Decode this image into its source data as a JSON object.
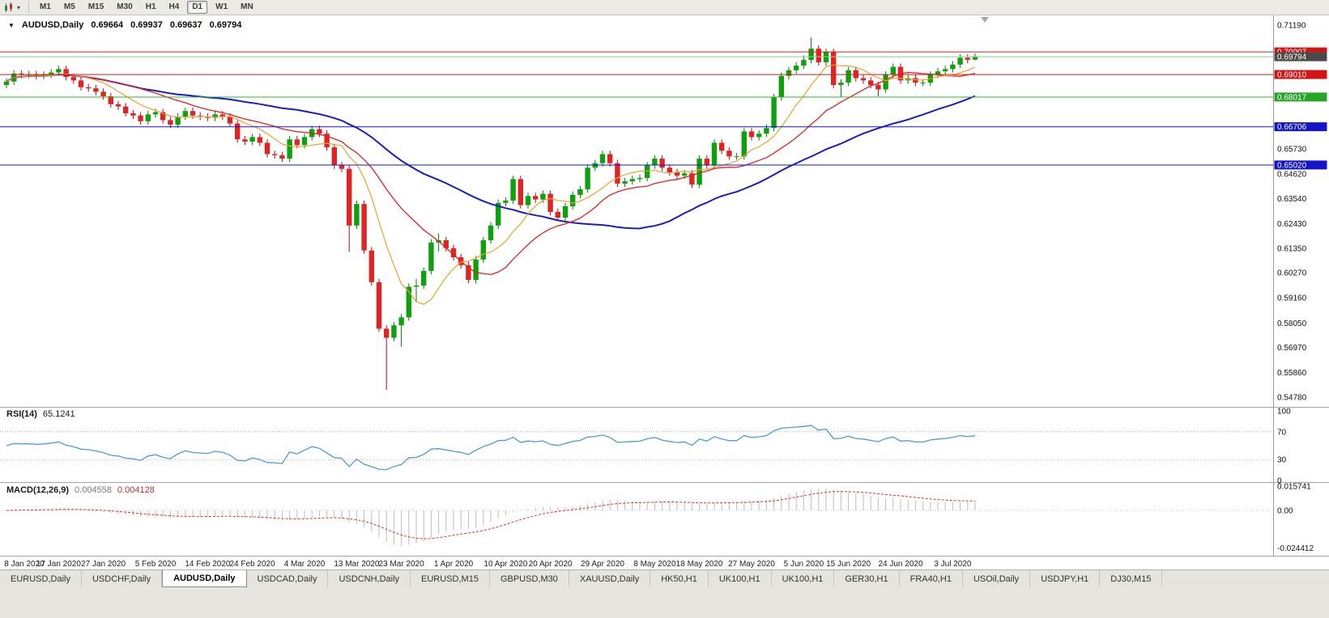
{
  "toolbar": {
    "timeframes": [
      "M1",
      "M5",
      "M15",
      "M30",
      "H1",
      "H4",
      "D1",
      "W1",
      "MN"
    ],
    "active_timeframe": "D1"
  },
  "chart_header": {
    "symbol_timeframe": "AUDUSD,Daily",
    "open": "0.69664",
    "high": "0.69937",
    "low": "0.69637",
    "close": "0.69794"
  },
  "rsi_header": {
    "name": "RSI(14)",
    "value": "65.1241"
  },
  "macd_header": {
    "name": "MACD(12,26,9)",
    "main_value": "0.004558",
    "signal_value": "0.004128"
  },
  "price_axis": {
    "labels": [
      "0.71190",
      "0.65730",
      "0.64620",
      "0.63540",
      "0.62430",
      "0.61350",
      "0.60270",
      "0.59160",
      "0.58050",
      "0.56970",
      "0.55860",
      "0.54780"
    ]
  },
  "rsi_axis": [
    "100",
    "70",
    "30",
    "0"
  ],
  "macd_axis": [
    "0.015741",
    "0.00",
    "-0.024412"
  ],
  "tabs": {
    "active_index": 2,
    "items": [
      "EURUSD,Daily",
      "USDCHF,Daily",
      "AUDUSD,Daily",
      "USDCAD,Daily",
      "USDCNH,Daily",
      "EURUSD,M15",
      "GBPUSD,M30",
      "XAUUSD,Daily",
      "HK50,H1",
      "UK100,H1",
      "UK100,H1",
      "GER30,H1",
      "FRA40,H1",
      "USOil,Daily",
      "USDJPY,H1",
      "DJ30,M15"
    ],
    "note": ""
  },
  "chart_data": {
    "type": "candlestick",
    "symbol": "AUDUSD",
    "timeframe": "Daily",
    "title": "AUDUSD,Daily  0.69664 0.69937 0.69637 0.69794",
    "ylim": [
      0.5478,
      0.7119
    ],
    "grid": false,
    "style": {
      "up": "#0da10d",
      "down": "#e02424",
      "up_wick": "#077d07",
      "down_wick": "#a31212",
      "rsi": "#4f9bd5",
      "macd_hist": "#bdbdbd",
      "macd_signal": "#e03030",
      "current_price_line": "#85d285"
    },
    "moving_averages": [
      {
        "label": "MA fast",
        "color": "#eea22e"
      },
      {
        "label": "MA medium",
        "color": "#e32020"
      },
      {
        "label": "MA slow",
        "color": "#1c1cc0"
      }
    ],
    "hlines": [
      {
        "price": 0.70007,
        "label": "0.70007",
        "line_color": "#e01818",
        "tag_bg": "#d21414",
        "tag_fg": "#ffffff",
        "current": false
      },
      {
        "price": 0.69794,
        "label": "0.69794",
        "line_color": "#85d285",
        "tag_bg": "#4a4a4a",
        "tag_fg": "#ffffff",
        "current": true
      },
      {
        "price": 0.6901,
        "label": "0.69010",
        "line_color": "#e01818",
        "tag_bg": "#d21414",
        "tag_fg": "#ffffff",
        "current": false
      },
      {
        "price": 0.68017,
        "label": "0.68017",
        "line_color": "#2db82d",
        "tag_bg": "#28a428",
        "tag_fg": "#ffffff",
        "current": false
      },
      {
        "price": 0.66706,
        "label": "0.66706",
        "line_color": "#1414d2",
        "tag_bg": "#1414c8",
        "tag_fg": "#ffffff",
        "current": false
      },
      {
        "price": 0.6502,
        "label": "0.65020",
        "line_color": "#1414d2",
        "tag_bg": "#1414c8",
        "tag_fg": "#ffffff",
        "current": false
      }
    ],
    "x_labels": [
      [
        "8 Jan 2020",
        0
      ],
      [
        "17 Jan 2020",
        7
      ],
      [
        "27 Jan 2020",
        13
      ],
      [
        "5 Feb 2020",
        20
      ],
      [
        "14 Feb 2020",
        27
      ],
      [
        "24 Feb 2020",
        33
      ],
      [
        "4 Mar 2020",
        40
      ],
      [
        "13 Mar 2020",
        47
      ],
      [
        "23 Mar 2020",
        53
      ],
      [
        "1 Apr 2020",
        60
      ],
      [
        "10 Apr 2020",
        67
      ],
      [
        "20 Apr 2020",
        73
      ],
      [
        "29 Apr 2020",
        80
      ],
      [
        "8 May 2020",
        87
      ],
      [
        "18 May 2020",
        93
      ],
      [
        "27 May 2020",
        100
      ],
      [
        "5 Jun 2020",
        107
      ],
      [
        "15 Jun 2020",
        113
      ],
      [
        "24 Jun 2020",
        120
      ],
      [
        "3 Jul 2020",
        127
      ]
    ],
    "indicators": [
      {
        "name": "RSI",
        "period": 14,
        "current": 65.1241,
        "levels": [
          70,
          30
        ],
        "range": [
          0,
          100
        ]
      },
      {
        "name": "MACD",
        "params": [
          12,
          26,
          9
        ],
        "main": 0.004558,
        "signal": 0.004128,
        "range": [
          -0.024412,
          0.015741
        ]
      }
    ],
    "candles": [
      [
        0.6855,
        0.6885,
        0.684,
        0.687
      ],
      [
        0.687,
        0.692,
        0.6855,
        0.6905
      ],
      [
        0.6905,
        0.692,
        0.6885,
        0.69
      ],
      [
        0.69,
        0.6917,
        0.6885,
        0.6902
      ],
      [
        0.6902,
        0.6917,
        0.688,
        0.6895
      ],
      [
        0.6895,
        0.6915,
        0.688,
        0.69
      ],
      [
        0.69,
        0.6925,
        0.6885,
        0.691
      ],
      [
        0.691,
        0.694,
        0.6895,
        0.6925
      ],
      [
        0.6925,
        0.694,
        0.6875,
        0.689
      ],
      [
        0.689,
        0.6905,
        0.686,
        0.6875
      ],
      [
        0.6875,
        0.689,
        0.683,
        0.6845
      ],
      [
        0.6845,
        0.686,
        0.6825,
        0.684
      ],
      [
        0.684,
        0.6855,
        0.681,
        0.6825
      ],
      [
        0.6825,
        0.684,
        0.679,
        0.6805
      ],
      [
        0.6805,
        0.682,
        0.6755,
        0.677
      ],
      [
        0.677,
        0.6785,
        0.6745,
        0.676
      ],
      [
        0.676,
        0.6775,
        0.6715,
        0.673
      ],
      [
        0.673,
        0.6745,
        0.6705,
        0.672
      ],
      [
        0.672,
        0.6735,
        0.668,
        0.6695
      ],
      [
        0.6695,
        0.674,
        0.668,
        0.6725
      ],
      [
        0.6725,
        0.675,
        0.671,
        0.6735
      ],
      [
        0.6735,
        0.675,
        0.6685,
        0.67
      ],
      [
        0.67,
        0.6715,
        0.6665,
        0.668
      ],
      [
        0.668,
        0.673,
        0.6665,
        0.6715
      ],
      [
        0.6715,
        0.6755,
        0.67,
        0.674
      ],
      [
        0.674,
        0.6755,
        0.6705,
        0.672
      ],
      [
        0.672,
        0.6735,
        0.67,
        0.6715
      ],
      [
        0.6715,
        0.673,
        0.6695,
        0.671
      ],
      [
        0.671,
        0.674,
        0.6695,
        0.6725
      ],
      [
        0.6725,
        0.674,
        0.67,
        0.6715
      ],
      [
        0.6715,
        0.673,
        0.667,
        0.6685
      ],
      [
        0.6685,
        0.67,
        0.66,
        0.6615
      ],
      [
        0.6615,
        0.663,
        0.659,
        0.6605
      ],
      [
        0.6605,
        0.664,
        0.659,
        0.6625
      ],
      [
        0.6625,
        0.664,
        0.6585,
        0.66
      ],
      [
        0.66,
        0.6615,
        0.6535,
        0.655
      ],
      [
        0.655,
        0.6565,
        0.653,
        0.6545
      ],
      [
        0.6545,
        0.656,
        0.6515,
        0.653
      ],
      [
        0.653,
        0.663,
        0.6515,
        0.6615
      ],
      [
        0.6615,
        0.663,
        0.6575,
        0.659
      ],
      [
        0.659,
        0.664,
        0.6575,
        0.6625
      ],
      [
        0.6625,
        0.6675,
        0.661,
        0.666
      ],
      [
        0.666,
        0.6675,
        0.6625,
        0.664
      ],
      [
        0.664,
        0.6655,
        0.6565,
        0.658
      ],
      [
        0.658,
        0.6595,
        0.6485,
        0.65
      ],
      [
        0.65,
        0.6515,
        0.647,
        0.6485
      ],
      [
        0.6485,
        0.65,
        0.612,
        0.6235
      ],
      [
        0.6235,
        0.6345,
        0.622,
        0.633
      ],
      [
        0.633,
        0.6345,
        0.611,
        0.6125
      ],
      [
        0.6125,
        0.614,
        0.597,
        0.5985
      ],
      [
        0.5985,
        0.6,
        0.5765,
        0.578
      ],
      [
        0.578,
        0.5795,
        0.551,
        0.574
      ],
      [
        0.574,
        0.581,
        0.5725,
        0.5795
      ],
      [
        0.5795,
        0.5845,
        0.57,
        0.583
      ],
      [
        0.583,
        0.598,
        0.5815,
        0.5965
      ],
      [
        0.5965,
        0.6,
        0.59,
        0.597
      ],
      [
        0.597,
        0.605,
        0.5955,
        0.6035
      ],
      [
        0.6035,
        0.6175,
        0.602,
        0.616
      ],
      [
        0.616,
        0.62,
        0.612,
        0.617
      ],
      [
        0.617,
        0.6185,
        0.612,
        0.6135
      ],
      [
        0.6135,
        0.615,
        0.608,
        0.6095
      ],
      [
        0.6095,
        0.611,
        0.6045,
        0.606
      ],
      [
        0.606,
        0.6075,
        0.598,
        0.5995
      ],
      [
        0.5995,
        0.61,
        0.598,
        0.6085
      ],
      [
        0.6085,
        0.6185,
        0.607,
        0.617
      ],
      [
        0.617,
        0.625,
        0.6155,
        0.6235
      ],
      [
        0.6235,
        0.635,
        0.622,
        0.6335
      ],
      [
        0.6335,
        0.636,
        0.632,
        0.6345
      ],
      [
        0.6345,
        0.6455,
        0.633,
        0.644
      ],
      [
        0.644,
        0.6455,
        0.631,
        0.6325
      ],
      [
        0.6325,
        0.638,
        0.631,
        0.6365
      ],
      [
        0.6365,
        0.638,
        0.6335,
        0.635
      ],
      [
        0.635,
        0.639,
        0.6335,
        0.6375
      ],
      [
        0.6375,
        0.639,
        0.628,
        0.6295
      ],
      [
        0.6295,
        0.631,
        0.6255,
        0.627
      ],
      [
        0.627,
        0.6335,
        0.6255,
        0.632
      ],
      [
        0.632,
        0.6385,
        0.6305,
        0.637
      ],
      [
        0.637,
        0.641,
        0.6355,
        0.6395
      ],
      [
        0.6395,
        0.6505,
        0.638,
        0.649
      ],
      [
        0.649,
        0.6525,
        0.6475,
        0.651
      ],
      [
        0.651,
        0.6565,
        0.6495,
        0.655
      ],
      [
        0.655,
        0.6565,
        0.6495,
        0.651
      ],
      [
        0.651,
        0.6525,
        0.6405,
        0.642
      ],
      [
        0.642,
        0.6445,
        0.6405,
        0.643
      ],
      [
        0.643,
        0.6455,
        0.6415,
        0.644
      ],
      [
        0.644,
        0.646,
        0.6425,
        0.6445
      ],
      [
        0.6445,
        0.6515,
        0.643,
        0.65
      ],
      [
        0.65,
        0.6545,
        0.6485,
        0.653
      ],
      [
        0.653,
        0.6545,
        0.6475,
        0.649
      ],
      [
        0.649,
        0.6505,
        0.6455,
        0.647
      ],
      [
        0.647,
        0.6485,
        0.644,
        0.6455
      ],
      [
        0.6455,
        0.648,
        0.644,
        0.6465
      ],
      [
        0.6465,
        0.648,
        0.64,
        0.6415
      ],
      [
        0.6415,
        0.6545,
        0.64,
        0.653
      ],
      [
        0.653,
        0.6545,
        0.6485,
        0.65
      ],
      [
        0.65,
        0.6615,
        0.6485,
        0.66
      ],
      [
        0.66,
        0.6615,
        0.655,
        0.6565
      ],
      [
        0.6565,
        0.658,
        0.6525,
        0.654
      ],
      [
        0.654,
        0.6555,
        0.6525,
        0.654
      ],
      [
        0.654,
        0.6665,
        0.6525,
        0.665
      ],
      [
        0.665,
        0.6665,
        0.661,
        0.6625
      ],
      [
        0.6625,
        0.6655,
        0.661,
        0.664
      ],
      [
        0.664,
        0.668,
        0.6625,
        0.6665
      ],
      [
        0.6665,
        0.6815,
        0.665,
        0.68
      ],
      [
        0.68,
        0.691,
        0.6785,
        0.6895
      ],
      [
        0.6895,
        0.6935,
        0.688,
        0.692
      ],
      [
        0.692,
        0.6955,
        0.6905,
        0.694
      ],
      [
        0.694,
        0.6985,
        0.6925,
        0.6965
      ],
      [
        0.6965,
        0.7064,
        0.695,
        0.7015
      ],
      [
        0.7015,
        0.703,
        0.694,
        0.6955
      ],
      [
        0.6955,
        0.7015,
        0.694,
        0.7
      ],
      [
        0.7,
        0.7015,
        0.684,
        0.6855
      ],
      [
        0.6855,
        0.688,
        0.68,
        0.6865
      ],
      [
        0.6865,
        0.6935,
        0.685,
        0.692
      ],
      [
        0.692,
        0.6935,
        0.687,
        0.6885
      ],
      [
        0.6885,
        0.69,
        0.686,
        0.6875
      ],
      [
        0.6875,
        0.689,
        0.684,
        0.6855
      ],
      [
        0.6855,
        0.687,
        0.6805,
        0.6835
      ],
      [
        0.6835,
        0.6915,
        0.682,
        0.69
      ],
      [
        0.69,
        0.695,
        0.6885,
        0.6935
      ],
      [
        0.6935,
        0.695,
        0.686,
        0.6875
      ],
      [
        0.6875,
        0.69,
        0.686,
        0.6885
      ],
      [
        0.6885,
        0.69,
        0.685,
        0.6865
      ],
      [
        0.6865,
        0.688,
        0.685,
        0.6865
      ],
      [
        0.6865,
        0.6915,
        0.685,
        0.69
      ],
      [
        0.69,
        0.693,
        0.6885,
        0.6915
      ],
      [
        0.6915,
        0.694,
        0.69,
        0.6925
      ],
      [
        0.6925,
        0.696,
        0.691,
        0.6945
      ],
      [
        0.6945,
        0.699,
        0.693,
        0.6975
      ],
      [
        0.6975,
        0.699,
        0.695,
        0.6966
      ],
      [
        0.69664,
        0.69937,
        0.69637,
        0.69794
      ]
    ]
  }
}
